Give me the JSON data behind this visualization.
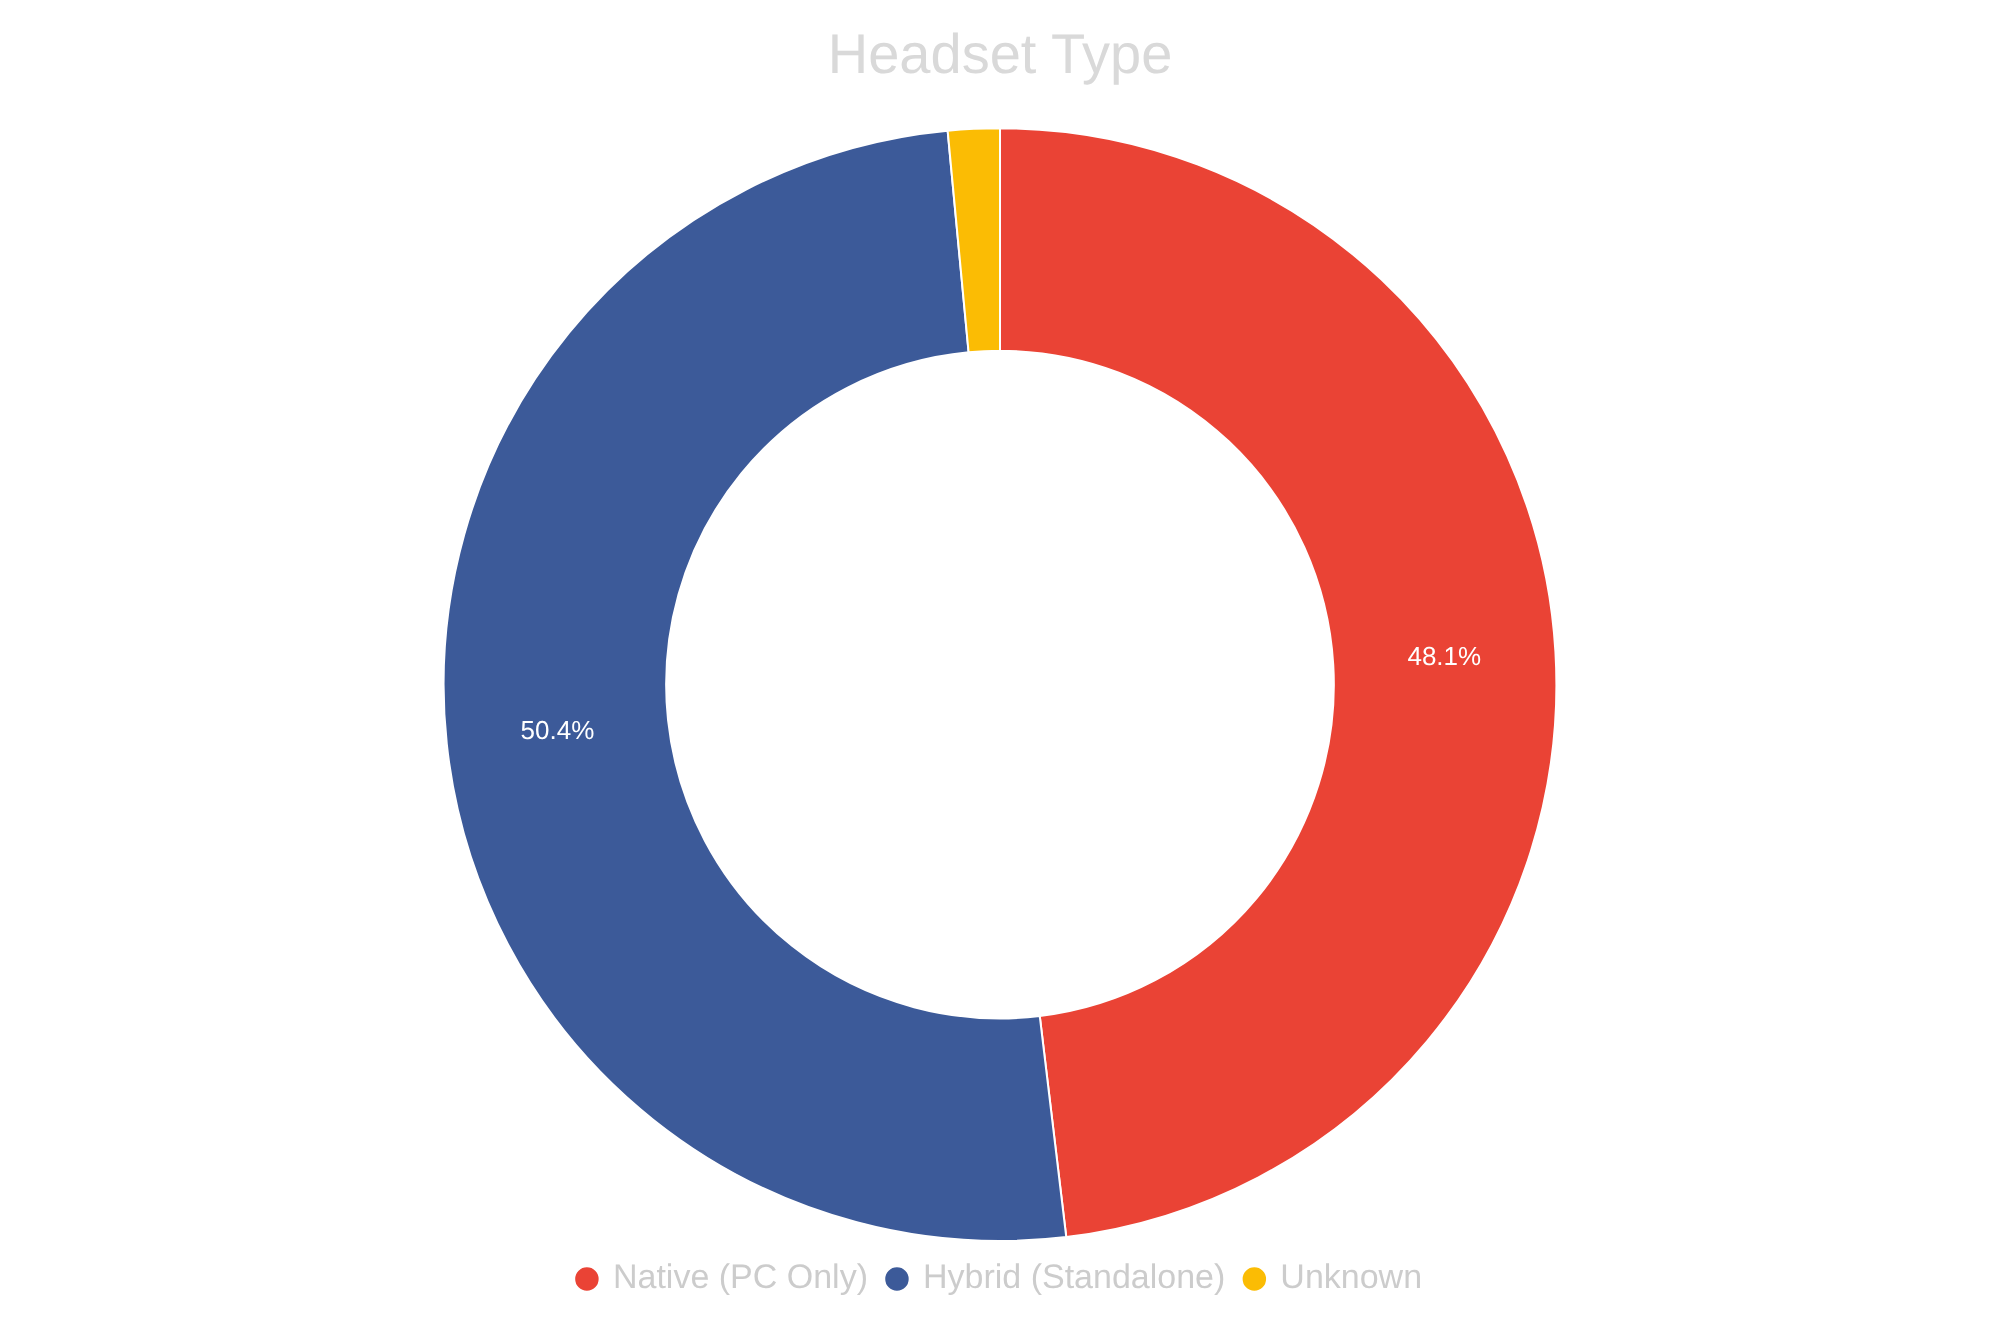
{
  "chart_data": {
    "type": "donut",
    "title": "Headset Type",
    "categories": [
      "Native (PC Only)",
      "Hybrid (Standalone)",
      "Unknown"
    ],
    "values": [
      48.1,
      50.4,
      1.5
    ],
    "colors": [
      "#ea4335",
      "#3c5a99",
      "#fbbc04"
    ],
    "value_labels": [
      "48.1%",
      "50.4%",
      null
    ],
    "legend": "bottom"
  }
}
